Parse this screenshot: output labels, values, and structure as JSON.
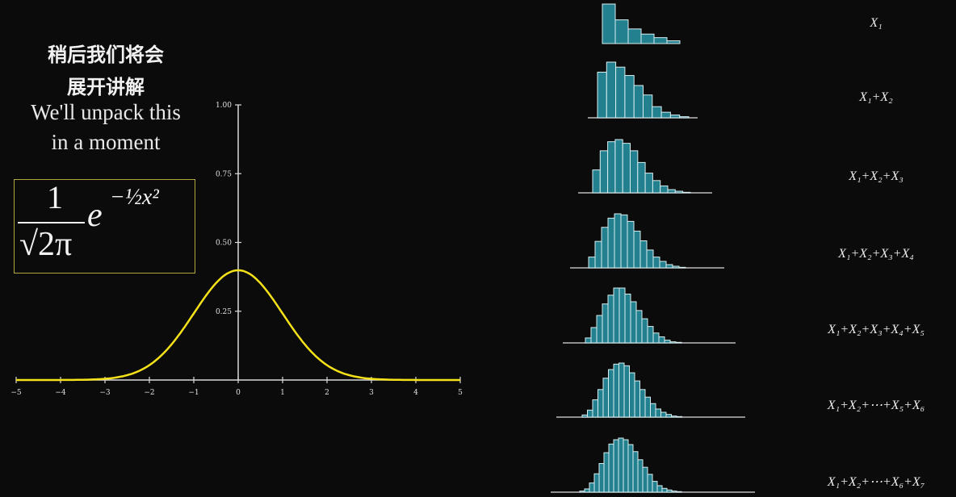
{
  "caption": {
    "zh_line1": "稍后我们将会",
    "zh_line2": "展开讲解",
    "en_line1": "We'll unpack this",
    "en_line2": "in a moment"
  },
  "formula": {
    "numerator": "1",
    "denominator": "√2π",
    "base": "e",
    "exponent": "−½x²",
    "box_color": "#b5a83a"
  },
  "chart_data": [
    {
      "type": "line",
      "function": "standard normal density (1/√(2π))·e^(−x²/2)",
      "x": [
        -5,
        -4.5,
        -4,
        -3.5,
        -3,
        -2.5,
        -2,
        -1.5,
        -1,
        -0.5,
        0,
        0.5,
        1,
        1.5,
        2,
        2.5,
        3,
        3.5,
        4,
        4.5,
        5
      ],
      "y": [
        1.5e-06,
        1.6e-05,
        0.000134,
        0.000873,
        0.00443,
        0.0175,
        0.054,
        0.1295,
        0.242,
        0.352,
        0.399,
        0.352,
        0.242,
        0.1295,
        0.054,
        0.0175,
        0.00443,
        0.000873,
        0.000134,
        1.6e-05,
        1.5e-06
      ],
      "xlim": [
        -5,
        5
      ],
      "ylim": [
        0,
        1
      ],
      "x_ticks": [
        "−5",
        "−4",
        "−3",
        "−2",
        "−1",
        "0",
        "1",
        "2",
        "3",
        "4",
        "5"
      ],
      "y_ticks": [
        "0.25",
        "0.50",
        "0.75",
        "1.00"
      ],
      "line_color": "#f5e11a",
      "axis_color": "#d9d9d9",
      "grid": false
    },
    {
      "type": "bar",
      "description_of_values": "relative bar heights (tallest = 1)",
      "bar_color": "#23808f",
      "bar_edge_color": "#d8eef0",
      "histograms": [
        {
          "label": "X₁",
          "values": [
            1,
            0.6,
            0.37,
            0.24,
            0.15,
            0.07
          ]
        },
        {
          "label": "X₁+X₂",
          "values": [
            0.82,
            1,
            0.91,
            0.76,
            0.58,
            0.41,
            0.2,
            0.1,
            0.05,
            0.02
          ]
        },
        {
          "label": "X₁+X₂+X₃",
          "values": [
            0.43,
            0.79,
            0.96,
            1,
            0.93,
            0.79,
            0.57,
            0.37,
            0.23,
            0.13,
            0.06,
            0.03,
            0.01
          ]
        },
        {
          "label": "X₁+X₂+X₃+X₄",
          "values": [
            0.2,
            0.49,
            0.75,
            0.92,
            1,
            0.98,
            0.86,
            0.68,
            0.5,
            0.33,
            0.2,
            0.12,
            0.06,
            0.03,
            0.01
          ]
        },
        {
          "label": "X₁+X₂+X₃+X₄+X₅",
          "values": [
            0.09,
            0.28,
            0.5,
            0.71,
            0.87,
            1,
            1,
            0.89,
            0.75,
            0.59,
            0.44,
            0.3,
            0.18,
            0.11,
            0.05,
            0.02,
            0.01
          ]
        },
        {
          "label": "X₁+X₂+⋯+X₅+X₆",
          "values": [
            0.04,
            0.13,
            0.32,
            0.51,
            0.72,
            0.88,
            0.98,
            1,
            0.95,
            0.82,
            0.67,
            0.51,
            0.37,
            0.25,
            0.15,
            0.09,
            0.05,
            0.02,
            0.01
          ]
        },
        {
          "label": "X₁+X₂+⋯+X₆+X₇",
          "values": [
            0.02,
            0.06,
            0.17,
            0.34,
            0.53,
            0.73,
            0.89,
            0.97,
            1,
            0.97,
            0.88,
            0.75,
            0.6,
            0.46,
            0.33,
            0.2,
            0.12,
            0.07,
            0.04,
            0.02,
            0.01
          ]
        }
      ]
    }
  ]
}
